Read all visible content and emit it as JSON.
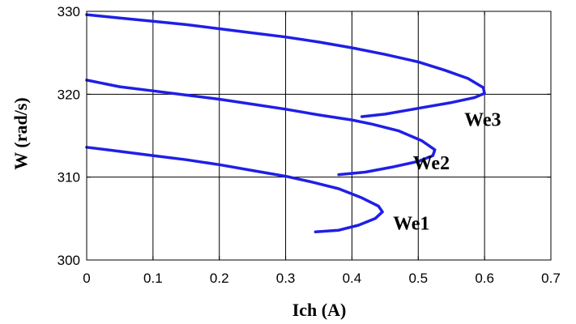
{
  "chart_data": {
    "type": "line",
    "title": "",
    "xlabel": "Ich (A)",
    "ylabel": "W (rad/s)",
    "xlim": [
      0,
      0.7
    ],
    "ylim": [
      300,
      330
    ],
    "xticks": [
      "0",
      "0.1",
      "0.2",
      "0.3",
      "0.4",
      "0.5",
      "0.6",
      "0.7"
    ],
    "yticks": [
      "300",
      "310",
      "320",
      "330"
    ],
    "grid": true,
    "line_color": "#1f1fe6",
    "series": [
      {
        "name": "We1",
        "points": [
          [
            0.345,
            303.4
          ],
          [
            0.38,
            303.6
          ],
          [
            0.41,
            304.2
          ],
          [
            0.435,
            305.0
          ],
          [
            0.446,
            305.8
          ],
          [
            0.44,
            306.5
          ],
          [
            0.415,
            307.5
          ],
          [
            0.38,
            308.6
          ],
          [
            0.34,
            309.4
          ],
          [
            0.3,
            310.1
          ],
          [
            0.25,
            310.8
          ],
          [
            0.2,
            311.5
          ],
          [
            0.15,
            312.1
          ],
          [
            0.1,
            312.6
          ],
          [
            0.05,
            313.1
          ],
          [
            0.0,
            313.6
          ]
        ]
      },
      {
        "name": "We2",
        "points": [
          [
            0.38,
            310.3
          ],
          [
            0.42,
            310.6
          ],
          [
            0.46,
            311.2
          ],
          [
            0.5,
            311.9
          ],
          [
            0.522,
            312.6
          ],
          [
            0.525,
            313.3
          ],
          [
            0.505,
            314.4
          ],
          [
            0.47,
            315.6
          ],
          [
            0.43,
            316.4
          ],
          [
            0.4,
            316.9
          ],
          [
            0.35,
            317.5
          ],
          [
            0.3,
            318.2
          ],
          [
            0.25,
            318.8
          ],
          [
            0.2,
            319.4
          ],
          [
            0.15,
            319.9
          ],
          [
            0.1,
            320.4
          ],
          [
            0.05,
            320.9
          ],
          [
            0.0,
            321.7
          ]
        ]
      },
      {
        "name": "We3",
        "points": [
          [
            0.415,
            317.3
          ],
          [
            0.45,
            317.6
          ],
          [
            0.5,
            318.3
          ],
          [
            0.55,
            319.0
          ],
          [
            0.585,
            319.6
          ],
          [
            0.6,
            320.1
          ],
          [
            0.598,
            320.8
          ],
          [
            0.575,
            321.9
          ],
          [
            0.54,
            322.9
          ],
          [
            0.5,
            323.9
          ],
          [
            0.45,
            324.8
          ],
          [
            0.4,
            325.6
          ],
          [
            0.35,
            326.3
          ],
          [
            0.3,
            326.9
          ],
          [
            0.25,
            327.4
          ],
          [
            0.2,
            327.9
          ],
          [
            0.15,
            328.4
          ],
          [
            0.1,
            328.8
          ],
          [
            0.05,
            329.2
          ],
          [
            0.0,
            329.6
          ]
        ]
      }
    ]
  }
}
